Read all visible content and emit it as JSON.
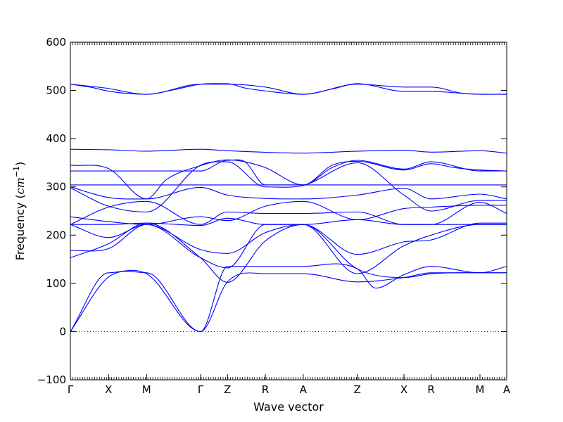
{
  "chart_data": {
    "type": "line",
    "title": "",
    "xlabel": "Wave vector",
    "ylabel_prefix": "Frequency (",
    "ylabel_unit": "cm",
    "ylabel_exp": "−1",
    "ylabel_suffix": ")",
    "ylim": [
      -100,
      600
    ],
    "yticks": [
      -100,
      0,
      100,
      200,
      300,
      400,
      500,
      600
    ],
    "xlim": [
      0,
      1
    ],
    "grid": false,
    "legend": "none",
    "line_color": "#0000ff",
    "zero_line": {
      "y": 0,
      "style": "dotted",
      "color": "#000000"
    },
    "kpoints": [
      {
        "label": "Γ",
        "x": 0.0
      },
      {
        "label": "X",
        "x": 0.0873
      },
      {
        "label": "M",
        "x": 0.1746
      },
      {
        "label": "Γ",
        "x": 0.2984
      },
      {
        "label": "Z",
        "x": 0.36
      },
      {
        "label": "R",
        "x": 0.4468
      },
      {
        "label": "A",
        "x": 0.5336
      },
      {
        "label": "Z",
        "x": 0.6576
      },
      {
        "label": "X",
        "x": 0.7645
      },
      {
        "label": "R",
        "x": 0.8268
      },
      {
        "label": "M",
        "x": 0.9387
      },
      {
        "label": "A",
        "x": 1.0
      }
    ],
    "series": [
      {
        "values": [
          [
            0,
            513
          ],
          [
            0.05,
            506
          ],
          [
            0.09,
            498
          ],
          [
            0.1746,
            492
          ],
          [
            0.24,
            502
          ],
          [
            0.2984,
            513
          ],
          [
            0.36,
            514
          ],
          [
            0.4,
            505
          ],
          [
            0.4468,
            499
          ],
          [
            0.5336,
            492
          ],
          [
            0.6,
            503
          ],
          [
            0.6576,
            514
          ],
          [
            0.7645,
            498
          ],
          [
            0.8268,
            498
          ],
          [
            0.9387,
            492
          ],
          [
            1,
            492
          ]
        ]
      },
      {
        "values": [
          [
            0,
            513
          ],
          [
            0.08,
            505
          ],
          [
            0.1746,
            492
          ],
          [
            0.2984,
            513
          ],
          [
            0.36,
            513
          ],
          [
            0.4468,
            507
          ],
          [
            0.5336,
            492
          ],
          [
            0.6576,
            513
          ],
          [
            0.7645,
            507
          ],
          [
            0.8268,
            507
          ],
          [
            0.9,
            494
          ],
          [
            1,
            492
          ]
        ]
      },
      {
        "values": [
          [
            0,
            378
          ],
          [
            0.0873,
            377
          ],
          [
            0.1746,
            374
          ],
          [
            0.2984,
            378
          ],
          [
            0.36,
            375
          ],
          [
            0.5336,
            370
          ],
          [
            0.6576,
            374
          ],
          [
            0.7645,
            376
          ],
          [
            0.8268,
            372
          ],
          [
            0.9387,
            375
          ],
          [
            1,
            370
          ]
        ]
      },
      {
        "values": [
          [
            0,
            345
          ],
          [
            0.0873,
            338
          ],
          [
            0.1746,
            275
          ],
          [
            0.22,
            315
          ],
          [
            0.2984,
            344
          ],
          [
            0.36,
            356
          ],
          [
            0.4,
            352
          ],
          [
            0.4468,
            340
          ],
          [
            0.5336,
            304
          ],
          [
            0.6,
            340
          ],
          [
            0.6576,
            355
          ],
          [
            0.7645,
            337
          ],
          [
            0.8268,
            352
          ],
          [
            0.9387,
            333
          ],
          [
            1,
            333
          ]
        ]
      },
      {
        "values": [
          [
            0,
            333
          ],
          [
            0.0873,
            333
          ],
          [
            0.1746,
            333
          ],
          [
            0.2984,
            333
          ],
          [
            0.36,
            355
          ],
          [
            0.4,
            352
          ],
          [
            0.4468,
            304
          ],
          [
            0.5336,
            304
          ],
          [
            0.6,
            345
          ],
          [
            0.6576,
            353
          ],
          [
            0.7645,
            335
          ],
          [
            0.8268,
            348
          ],
          [
            0.88,
            340
          ],
          [
            0.9387,
            335
          ],
          [
            1,
            333
          ]
        ]
      },
      {
        "values": [
          [
            0,
            304
          ],
          [
            0.0873,
            304
          ],
          [
            0.1746,
            304
          ],
          [
            0.2984,
            304
          ],
          [
            0.36,
            304
          ],
          [
            0.4468,
            304
          ],
          [
            0.5336,
            304
          ],
          [
            0.6576,
            304
          ],
          [
            0.7645,
            304
          ],
          [
            0.8268,
            304
          ],
          [
            0.9387,
            304
          ],
          [
            1,
            304
          ]
        ]
      },
      {
        "values": [
          [
            0,
            300
          ],
          [
            0.0873,
            278
          ],
          [
            0.1746,
            275
          ],
          [
            0.2984,
            299
          ],
          [
            0.36,
            283
          ],
          [
            0.4468,
            276
          ],
          [
            0.5336,
            275
          ],
          [
            0.6576,
            283
          ],
          [
            0.7645,
            297
          ],
          [
            0.8268,
            275
          ],
          [
            0.9387,
            285
          ],
          [
            1,
            275
          ]
        ]
      },
      {
        "values": [
          [
            0,
            298
          ],
          [
            0.0873,
            260
          ],
          [
            0.1746,
            248
          ],
          [
            0.2984,
            345
          ],
          [
            0.36,
            352
          ],
          [
            0.4468,
            300
          ],
          [
            0.5336,
            303
          ],
          [
            0.6576,
            350
          ],
          [
            0.7645,
            283
          ],
          [
            0.8268,
            250
          ],
          [
            0.9387,
            272
          ],
          [
            1,
            272
          ]
        ]
      },
      {
        "values": [
          [
            0,
            238
          ],
          [
            0.0873,
            228
          ],
          [
            0.1746,
            222
          ],
          [
            0.2984,
            238
          ],
          [
            0.36,
            230
          ],
          [
            0.4468,
            260
          ],
          [
            0.5336,
            270
          ],
          [
            0.6576,
            232
          ],
          [
            0.7645,
            255
          ],
          [
            0.8268,
            258
          ],
          [
            0.9387,
            262
          ],
          [
            1,
            262
          ]
        ]
      },
      {
        "values": [
          [
            0,
            222
          ],
          [
            0.0873,
            258
          ],
          [
            0.1746,
            270
          ],
          [
            0.2984,
            222
          ],
          [
            0.36,
            248
          ],
          [
            0.4468,
            245
          ],
          [
            0.5336,
            245
          ],
          [
            0.6576,
            248
          ],
          [
            0.7645,
            222
          ],
          [
            0.8268,
            222
          ],
          [
            0.9387,
            268
          ],
          [
            1,
            245
          ]
        ]
      },
      {
        "values": [
          [
            0,
            222
          ],
          [
            0.0873,
            222
          ],
          [
            0.1746,
            225
          ],
          [
            0.2984,
            220
          ],
          [
            0.36,
            235
          ],
          [
            0.4468,
            222
          ],
          [
            0.5336,
            222
          ],
          [
            0.6576,
            232
          ],
          [
            0.7645,
            222
          ],
          [
            0.8268,
            222
          ],
          [
            0.9387,
            222
          ],
          [
            1,
            222
          ]
        ]
      },
      {
        "values": [
          [
            0,
            222
          ],
          [
            0.0873,
            195
          ],
          [
            0.1746,
            222
          ],
          [
            0.2984,
            170
          ],
          [
            0.36,
            162
          ],
          [
            0.4468,
            205
          ],
          [
            0.5336,
            222
          ],
          [
            0.6576,
            160
          ],
          [
            0.7645,
            186
          ],
          [
            0.8268,
            190
          ],
          [
            0.9387,
            225
          ],
          [
            1,
            225
          ]
        ]
      },
      {
        "values": [
          [
            0,
            168
          ],
          [
            0.0873,
            172
          ],
          [
            0.1746,
            222
          ],
          [
            0.2984,
            153
          ],
          [
            0.36,
            132
          ],
          [
            0.4468,
            222
          ],
          [
            0.5336,
            222
          ],
          [
            0.6576,
            120
          ],
          [
            0.7645,
            178
          ],
          [
            0.8268,
            200
          ],
          [
            0.9387,
            222
          ],
          [
            1,
            222
          ]
        ]
      },
      {
        "values": [
          [
            0,
            153
          ],
          [
            0.0873,
            182
          ],
          [
            0.1746,
            225
          ],
          [
            0.2984,
            153
          ],
          [
            0.36,
            102
          ],
          [
            0.4468,
            188
          ],
          [
            0.5336,
            222
          ],
          [
            0.6576,
            130
          ],
          [
            0.7645,
            112
          ],
          [
            0.8268,
            120
          ],
          [
            0.9387,
            122
          ],
          [
            1,
            122
          ]
        ]
      },
      {
        "values": [
          [
            0,
            0
          ],
          [
            0.0873,
            113
          ],
          [
            0.1746,
            122
          ],
          [
            0.2984,
            0
          ],
          [
            0.36,
            135
          ],
          [
            0.4468,
            135
          ],
          [
            0.5336,
            135
          ],
          [
            0.6576,
            130
          ],
          [
            0.7,
            90
          ],
          [
            0.7645,
            118
          ],
          [
            0.8268,
            135
          ],
          [
            0.9387,
            122
          ],
          [
            1,
            135
          ]
        ]
      },
      {
        "values": [
          [
            0,
            0
          ],
          [
            0.0873,
            122
          ],
          [
            0.1746,
            120
          ],
          [
            0.2984,
            0
          ],
          [
            0.36,
            103
          ],
          [
            0.4468,
            120
          ],
          [
            0.5336,
            120
          ],
          [
            0.6576,
            103
          ],
          [
            0.7645,
            112
          ],
          [
            0.8268,
            122
          ],
          [
            0.9387,
            122
          ],
          [
            1,
            122
          ]
        ]
      }
    ]
  }
}
